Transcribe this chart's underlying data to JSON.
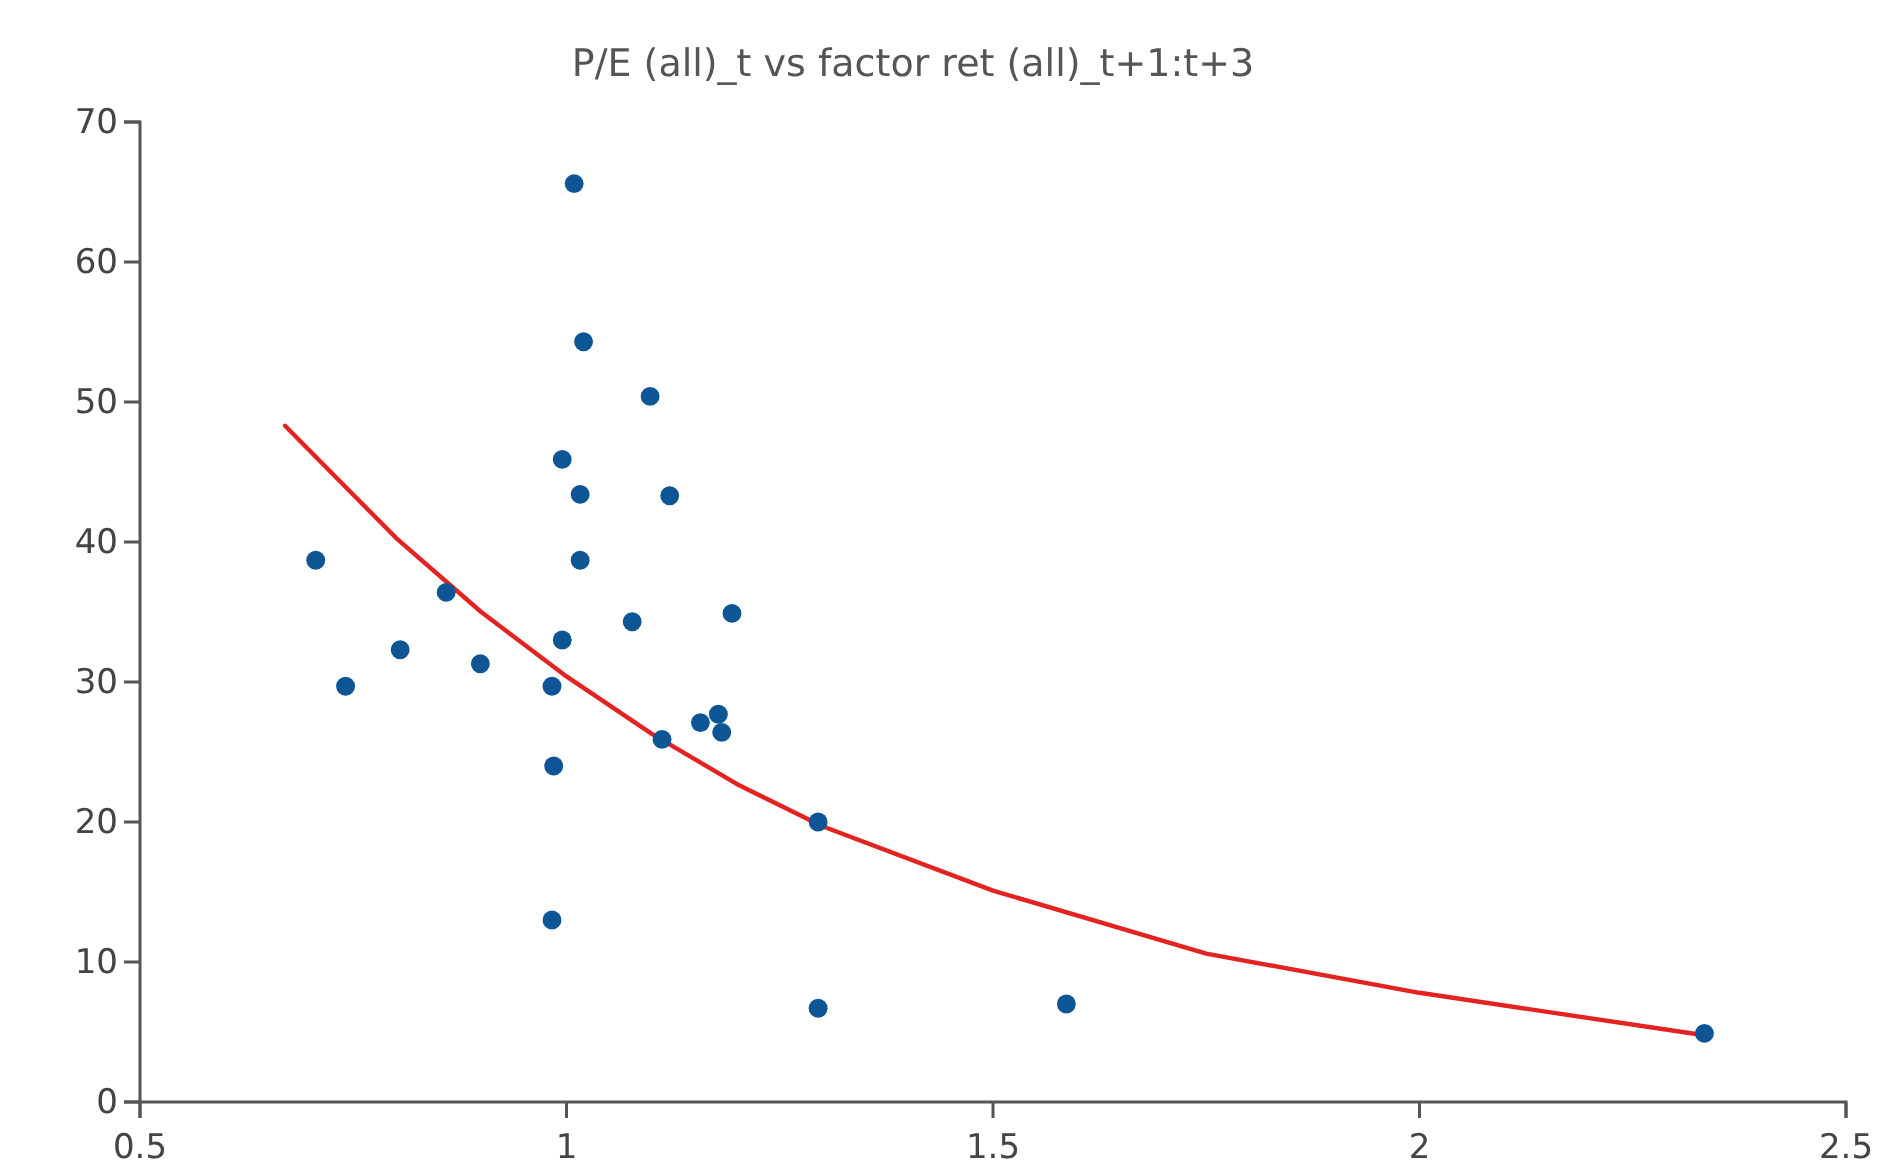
{
  "chart_data": {
    "type": "scatter",
    "title": "P/E (all)_t vs factor ret (all)_t+1:t+3",
    "xlim": [
      0.5,
      2.5
    ],
    "xticks": [
      0.5,
      1,
      1.5,
      2,
      2.5
    ],
    "ylim": [
      0,
      70
    ],
    "yticks": [
      0,
      10,
      20,
      30,
      40,
      50,
      60,
      70
    ],
    "grid": false,
    "series": [
      {
        "color": "#0d5595",
        "marker": "circle",
        "x": [
          0.706,
          0.741,
          0.805,
          0.859,
          0.899,
          0.983,
          0.985,
          0.983,
          0.995,
          0.995,
          1.009,
          1.016,
          1.016,
          1.02,
          1.077,
          1.098,
          1.112,
          1.121,
          1.157,
          1.178,
          1.182,
          1.194,
          1.295,
          1.295,
          1.586,
          2.334
        ],
        "values": [
          38.7,
          29.7,
          32.3,
          36.4,
          31.3,
          29.7,
          24.0,
          13.0,
          45.9,
          33.0,
          65.6,
          43.4,
          38.7,
          54.3,
          34.3,
          50.4,
          25.9,
          43.3,
          27.1,
          27.7,
          26.4,
          34.9,
          20.0,
          6.7,
          7.0,
          4.9
        ]
      },
      {
        "type": "line",
        "color": "#e32222",
        "marker": "none",
        "line_style": "solid",
        "x": [
          0.67,
          0.8,
          0.9,
          1.0,
          1.1,
          1.2,
          1.3,
          1.5,
          1.75,
          2.0,
          2.33
        ],
        "values": [
          48.3,
          40.3,
          35,
          30.4,
          26.3,
          22.7,
          19.7,
          15.1,
          10.6,
          7.8,
          4.8
        ]
      }
    ]
  }
}
